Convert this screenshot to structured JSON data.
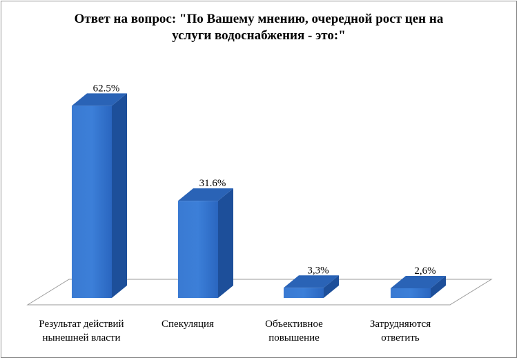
{
  "chart_data": {
    "type": "bar",
    "title_lines": [
      "Ответ на вопрос: \"По Вашему мнению, очередной рост цен на",
      "услуги водоснабжения - это:\""
    ],
    "categories": [
      [
        "Результат действий",
        "нынешней власти"
      ],
      [
        "Спекуляция"
      ],
      [
        "Объективное",
        "повышение"
      ],
      [
        "Затрудняются",
        "ответить"
      ]
    ],
    "values": [
      62.5,
      31.6,
      3.3,
      2.6
    ],
    "data_labels": [
      "62.5%",
      "31.6%",
      "3,3%",
      "2,6%"
    ],
    "ylim": [
      0,
      70
    ],
    "three_d": true,
    "grid": false,
    "legend": "none"
  },
  "colors": {
    "bar_front": "#2f6fc9",
    "bar_front_light": "#3f80d6",
    "bar_side": "#1d4f9a",
    "bar_top": "#2a63b6",
    "floor": "#ffffff",
    "floor_edge": "#9a9a9a"
  }
}
